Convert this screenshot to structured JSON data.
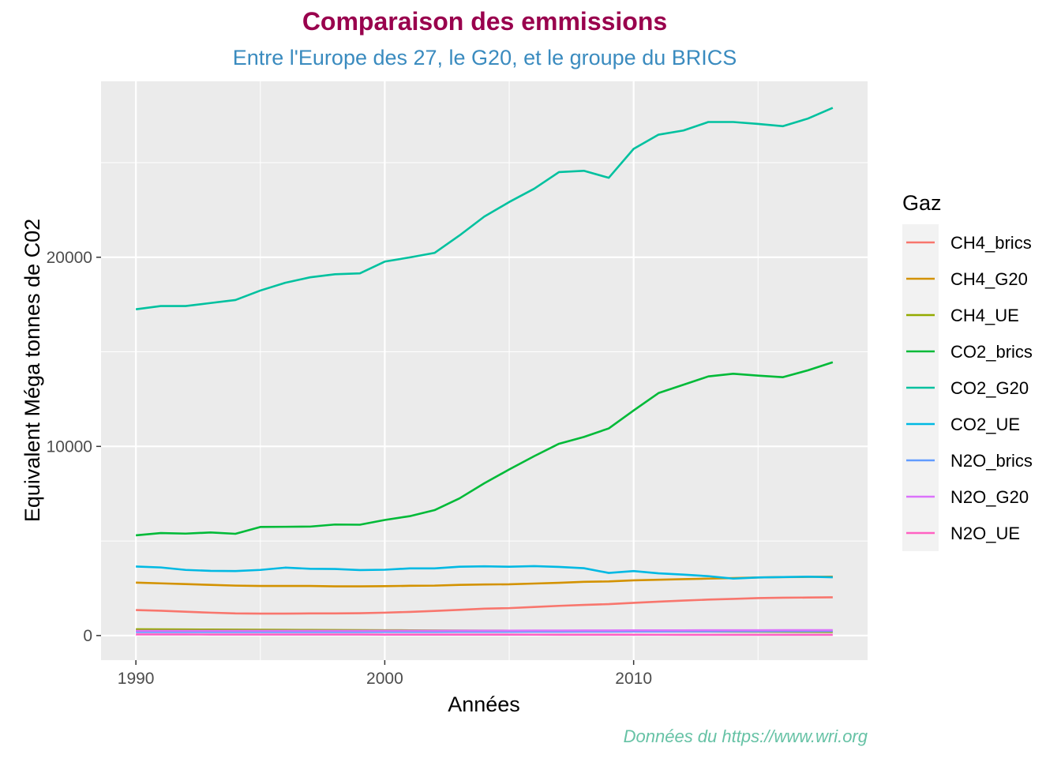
{
  "chart_data": {
    "type": "line",
    "title": "Comparaison des emmissions",
    "subtitle": "Entre l'Europe des 27, le G20, et le groupe du BRICS",
    "xlabel": "Années",
    "ylabel": "Equivalent Méga tonnes de C02",
    "caption": "Données du https://www.wri.org",
    "legend_title": "Gaz",
    "legend_position": "right",
    "grid": true,
    "xlim": [
      1988.6,
      2019.4
    ],
    "ylim": [
      -1300,
      29300
    ],
    "x_ticks": [
      1990,
      2000,
      2010
    ],
    "x_tick_labels": [
      "1990",
      "2000",
      "2010"
    ],
    "x_minor_ticks": [
      1995,
      2005,
      2015
    ],
    "y_ticks": [
      0,
      10000,
      20000
    ],
    "y_tick_labels": [
      "0",
      "10000",
      "20000"
    ],
    "y_minor_ticks": [
      5000,
      15000,
      25000
    ],
    "colors": {
      "title": "#99004d",
      "subtitle": "#3a8bbf",
      "caption": "#66c2a5",
      "panel": "#ebebeb",
      "grid": "#ffffff"
    },
    "x": [
      1990,
      1991,
      1992,
      1993,
      1994,
      1995,
      1996,
      1997,
      1998,
      1999,
      2000,
      2001,
      2002,
      2003,
      2004,
      2005,
      2006,
      2007,
      2008,
      2009,
      2010,
      2011,
      2012,
      2013,
      2014,
      2015,
      2016,
      2017,
      2018
    ],
    "series": [
      {
        "name": "CH4_brics",
        "color": "#F8766D",
        "values": [
          1350,
          1310,
          1260,
          1210,
          1170,
          1160,
          1160,
          1170,
          1170,
          1180,
          1210,
          1250,
          1300,
          1360,
          1420,
          1450,
          1510,
          1570,
          1620,
          1660,
          1730,
          1790,
          1850,
          1900,
          1940,
          1980,
          2000,
          2010,
          2020
        ]
      },
      {
        "name": "CH4_G20",
        "color": "#D39200",
        "values": [
          2800,
          2760,
          2720,
          2680,
          2640,
          2620,
          2620,
          2620,
          2600,
          2600,
          2610,
          2630,
          2640,
          2680,
          2700,
          2710,
          2750,
          2790,
          2840,
          2860,
          2920,
          2950,
          2980,
          3010,
          3040,
          3070,
          3090,
          3100,
          3110
        ]
      },
      {
        "name": "CH4_UE",
        "color": "#93AA00",
        "values": [
          330,
          325,
          320,
          315,
          310,
          305,
          300,
          295,
          290,
          285,
          280,
          275,
          270,
          265,
          260,
          255,
          250,
          245,
          240,
          235,
          230,
          225,
          220,
          215,
          210,
          205,
          200,
          195,
          190
        ]
      },
      {
        "name": "CO2_brics",
        "color": "#00BA38",
        "values": [
          5300,
          5420,
          5390,
          5450,
          5380,
          5740,
          5750,
          5760,
          5870,
          5860,
          6110,
          6310,
          6630,
          7250,
          8050,
          8780,
          9480,
          10140,
          10500,
          10950,
          11900,
          12820,
          13260,
          13700,
          13840,
          13740,
          13660,
          14020,
          14450
        ]
      },
      {
        "name": "CO2_G20",
        "color": "#00C19F",
        "values": [
          17250,
          17420,
          17420,
          17580,
          17740,
          18240,
          18650,
          18940,
          19100,
          19150,
          19770,
          19990,
          20230,
          21150,
          22150,
          22920,
          23620,
          24500,
          24570,
          24200,
          25730,
          26480,
          26700,
          27150,
          27150,
          27050,
          26930,
          27330,
          27900
        ]
      },
      {
        "name": "CO2_UE",
        "color": "#00B9E3",
        "values": [
          3650,
          3600,
          3470,
          3420,
          3410,
          3470,
          3590,
          3530,
          3520,
          3460,
          3480,
          3550,
          3550,
          3640,
          3660,
          3640,
          3670,
          3630,
          3560,
          3310,
          3410,
          3290,
          3220,
          3140,
          3010,
          3070,
          3090,
          3110,
          3080
        ]
      },
      {
        "name": "N2O_brics",
        "color": "#619CFF",
        "values": [
          190,
          190,
          190,
          190,
          190,
          190,
          190,
          190,
          190,
          190,
          195,
          195,
          195,
          200,
          200,
          200,
          205,
          205,
          210,
          210,
          215,
          215,
          220,
          220,
          225,
          225,
          230,
          230,
          235
        ]
      },
      {
        "name": "N2O_G20",
        "color": "#DB72FB",
        "values": [
          250,
          250,
          250,
          250,
          250,
          250,
          250,
          250,
          250,
          250,
          255,
          255,
          255,
          260,
          260,
          260,
          265,
          265,
          270,
          270,
          275,
          275,
          275,
          280,
          280,
          280,
          285,
          285,
          285
        ]
      },
      {
        "name": "N2O_UE",
        "color": "#FF61C3",
        "values": [
          60,
          60,
          58,
          56,
          55,
          55,
          54,
          53,
          52,
          52,
          51,
          50,
          49,
          48,
          48,
          47,
          46,
          45,
          44,
          43,
          42,
          41,
          40,
          40,
          39,
          39,
          38,
          38,
          37
        ]
      }
    ]
  }
}
